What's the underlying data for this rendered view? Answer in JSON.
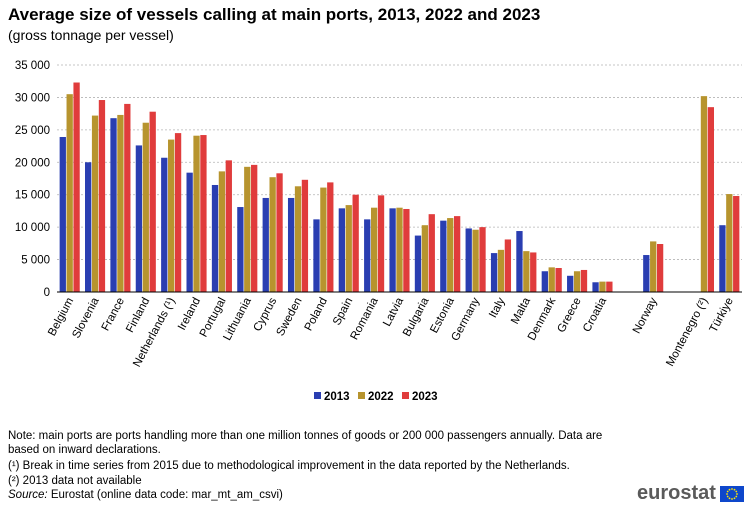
{
  "title": "Average size of vessels calling at main ports, 2013, 2022 and 2023",
  "subtitle": "(gross tonnage per vessel)",
  "notes": {
    "main": "Note: main ports are ports handling more than one million tonnes of goods or 200 000 passengers annually.  Data are based on inward declarations.",
    "fn1": "(¹) Break in time series from 2015 due to methodological improvement in the data reported by the Netherlands.",
    "fn2": "(²) 2013 data not available"
  },
  "source": {
    "label": "Source:",
    "text": " Eurostat (online data code: mar_mt_am_csvi)"
  },
  "logo_text": "eurostat",
  "colors": {
    "2013": "#2a3eb1",
    "2022": "#b7942e",
    "2023": "#e03c3c",
    "grid": "#b4b4b4",
    "axis": "#000000"
  },
  "chart_data": {
    "type": "bar",
    "title": "Average size of vessels calling at main ports, 2013, 2022 and 2023",
    "ylim": [
      0,
      35000
    ],
    "yticks": [
      0,
      5000,
      10000,
      15000,
      20000,
      25000,
      30000,
      35000
    ],
    "ytick_labels": [
      "0",
      "5 000",
      "10 000",
      "15 000",
      "20 000",
      "25 000",
      "30 000",
      "35 000"
    ],
    "grid": true,
    "legend_position": "bottom",
    "categories": [
      "Belgium",
      "Slovenia",
      "France",
      "Finland",
      "Netherlands (¹)",
      "Ireland",
      "Portugal",
      "Lithuania",
      "Cyprus",
      "Sweden",
      "Poland",
      "Spain",
      "Romania",
      "Latvia",
      "Bulgaria",
      "Estonia",
      "Germany",
      "Italy",
      "Malta",
      "Denmark",
      "Greece",
      "Croatia",
      "",
      "Norway",
      "",
      "Montenegro (²)",
      "Türkiye"
    ],
    "series": [
      {
        "name": "2013",
        "values": [
          23900,
          20000,
          26800,
          22600,
          20700,
          18400,
          16500,
          13100,
          14500,
          14500,
          11200,
          12900,
          11200,
          12900,
          8700,
          11000,
          9800,
          6000,
          9400,
          3200,
          2500,
          1500,
          null,
          5700,
          null,
          null,
          10300
        ]
      },
      {
        "name": "2022",
        "values": [
          30500,
          27200,
          27300,
          26100,
          23500,
          24100,
          18600,
          19300,
          17700,
          16300,
          16100,
          13400,
          13000,
          13000,
          10300,
          11400,
          9600,
          6500,
          6300,
          3800,
          3200,
          1600,
          null,
          7800,
          null,
          30200,
          15100
        ]
      },
      {
        "name": "2023",
        "values": [
          32300,
          29600,
          29000,
          27800,
          24500,
          24200,
          20300,
          19600,
          18300,
          17300,
          16900,
          15000,
          14900,
          12800,
          12000,
          11700,
          10000,
          8100,
          6100,
          3700,
          3400,
          1600,
          null,
          7400,
          null,
          28500,
          14800
        ]
      }
    ]
  }
}
